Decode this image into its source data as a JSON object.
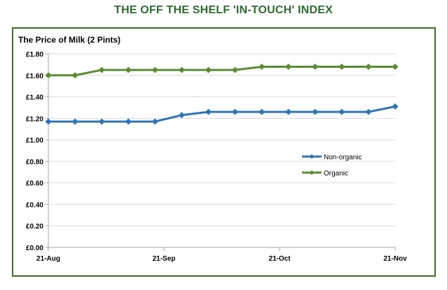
{
  "page": {
    "title": "THE OFF THE SHELF 'IN-TOUCH' INDEX"
  },
  "colors": {
    "title": "#2E6B2E",
    "frame": "#3E6B2E",
    "non_organic": "#2E75B6",
    "organic": "#5B8C32",
    "grid": "#D9D9D9",
    "axis": "#A6A6A6"
  },
  "chart_data": {
    "type": "line",
    "title": "The Price of Milk (2 Pints)",
    "xlabel": "",
    "ylabel": "",
    "ylim": [
      0,
      1.8
    ],
    "y_ticks": [
      "£0.00",
      "£0.20",
      "£0.40",
      "£0.60",
      "£0.80",
      "£1.00",
      "£1.20",
      "£1.40",
      "£1.60",
      "£1.80"
    ],
    "x_tick_labels": [
      "21-Aug",
      "21-Sep",
      "21-Oct",
      "21-Nov"
    ],
    "grid": true,
    "legend_position": "right",
    "series": [
      {
        "name": "Non-organic",
        "color": "#2E75B6",
        "values": [
          1.17,
          1.17,
          1.17,
          1.17,
          1.17,
          1.23,
          1.26,
          1.26,
          1.26,
          1.26,
          1.26,
          1.26,
          1.26,
          1.31
        ]
      },
      {
        "name": "Organic",
        "color": "#5B8C32",
        "values": [
          1.6,
          1.6,
          1.65,
          1.65,
          1.65,
          1.65,
          1.65,
          1.65,
          1.68,
          1.68,
          1.68,
          1.68,
          1.68,
          1.68
        ]
      }
    ]
  }
}
